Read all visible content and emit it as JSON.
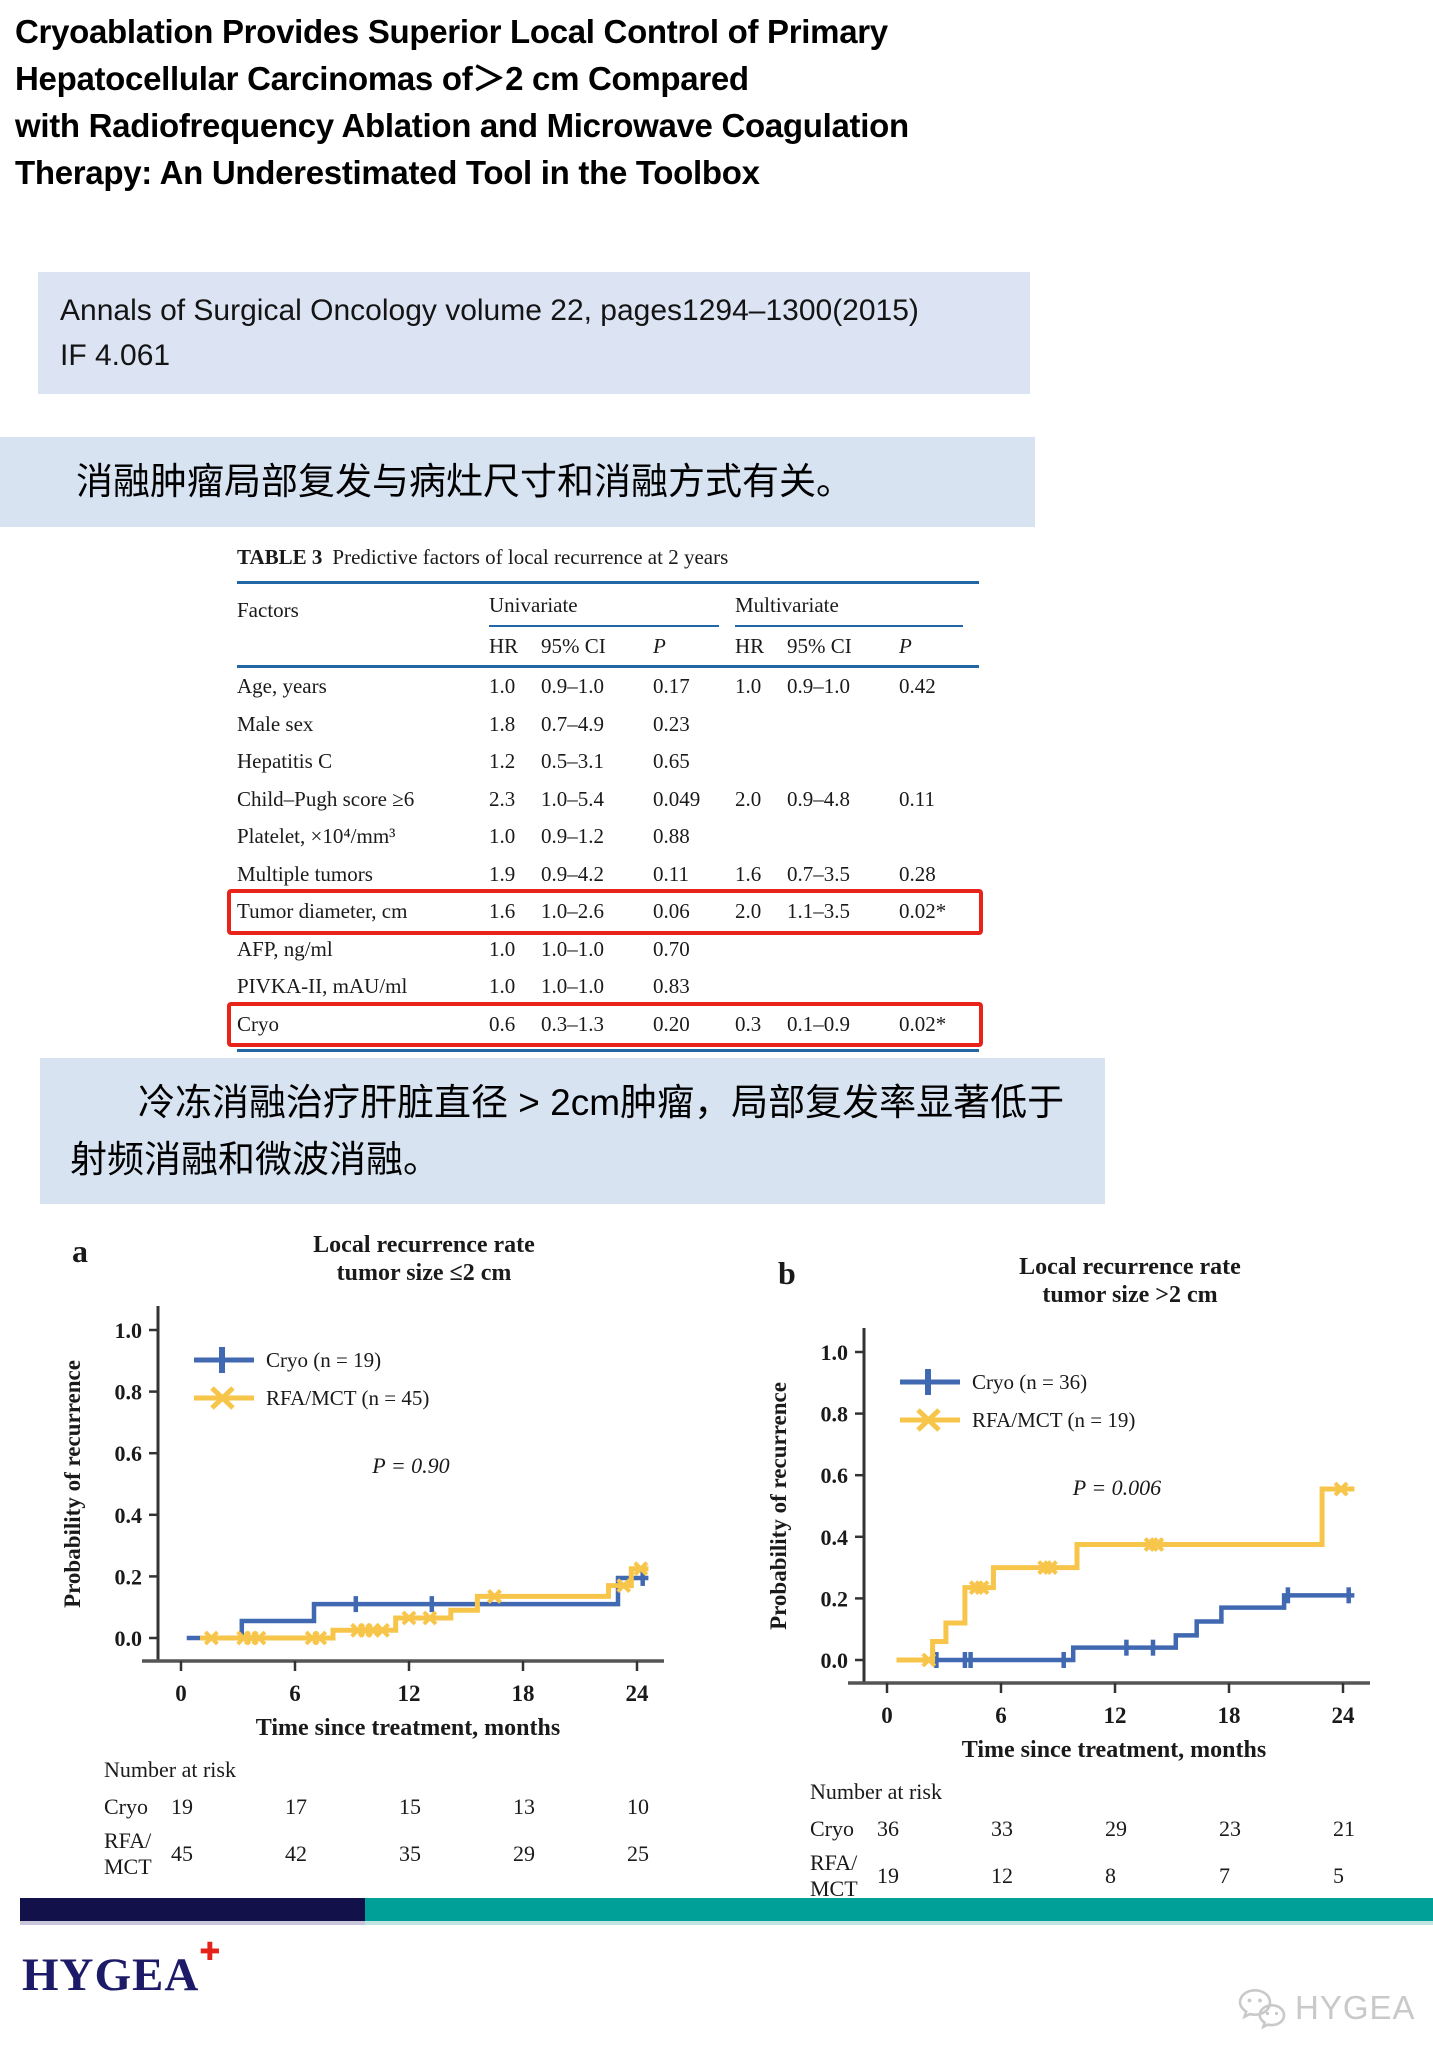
{
  "header": {
    "title_lines": [
      "Cryoablation Provides Superior Local Control of Primary",
      "Hepatocellular Carcinomas of＞2 cm Compared",
      "with Radiofrequency Ablation and Microwave Coagulation",
      "Therapy: An Underestimated Tool in the Toolbox"
    ]
  },
  "citation": {
    "line1": "Annals of Surgical Oncology volume 22, pages1294–1300(2015)",
    "line2": "IF 4.061"
  },
  "banners": {
    "zh1": "消融肿瘤局部复发与病灶尺寸和消融方式有关。",
    "zh2": "冷冻消融治疗肝脏直径 > 2cm肿瘤，局部复发率显著低于射频消融和微波消融。"
  },
  "table": {
    "label": "TABLE 3",
    "caption": "Predictive factors of local recurrence at 2 years",
    "factors_header": "Factors",
    "col_groups": [
      "Univariate",
      "Multivariate"
    ],
    "sub_headers": [
      "HR",
      "95% CI",
      "P"
    ],
    "rows": [
      {
        "factor": "Age, years",
        "uni": [
          "1.0",
          "0.9–1.0",
          "0.17"
        ],
        "multi": [
          "1.0",
          "0.9–1.0",
          "0.42"
        ],
        "boxed": false
      },
      {
        "factor": "Male sex",
        "uni": [
          "1.8",
          "0.7–4.9",
          "0.23"
        ],
        "multi": [
          "",
          "",
          ""
        ],
        "boxed": false
      },
      {
        "factor": "Hepatitis C",
        "uni": [
          "1.2",
          "0.5–3.1",
          "0.65"
        ],
        "multi": [
          "",
          "",
          ""
        ],
        "boxed": false
      },
      {
        "factor": "Child–Pugh score ≥6",
        "uni": [
          "2.3",
          "1.0–5.4",
          "0.049"
        ],
        "multi": [
          "2.0",
          "0.9–4.8",
          "0.11"
        ],
        "boxed": false
      },
      {
        "factor": "Platelet, ×10⁴/mm³",
        "uni": [
          "1.0",
          "0.9–1.2",
          "0.88"
        ],
        "multi": [
          "",
          "",
          ""
        ],
        "boxed": false
      },
      {
        "factor": "Multiple tumors",
        "uni": [
          "1.9",
          "0.9–4.2",
          "0.11"
        ],
        "multi": [
          "1.6",
          "0.7–3.5",
          "0.28"
        ],
        "boxed": false
      },
      {
        "factor": "Tumor diameter, cm",
        "uni": [
          "1.6",
          "1.0–2.6",
          "0.06"
        ],
        "multi": [
          "2.0",
          "1.1–3.5",
          "0.02*"
        ],
        "boxed": true
      },
      {
        "factor": "AFP, ng/ml",
        "uni": [
          "1.0",
          "1.0–1.0",
          "0.70"
        ],
        "multi": [
          "",
          "",
          ""
        ],
        "boxed": false
      },
      {
        "factor": "PIVKA-II, mAU/ml",
        "uni": [
          "1.0",
          "1.0–1.0",
          "0.83"
        ],
        "multi": [
          "",
          "",
          ""
        ],
        "boxed": false
      },
      {
        "factor": "Cryo",
        "uni": [
          "0.6",
          "0.3–1.3",
          "0.20"
        ],
        "multi": [
          "0.3",
          "0.1–0.9",
          "0.02*"
        ],
        "boxed": true
      }
    ]
  },
  "chart_data": [
    {
      "type": "line",
      "panel": "a",
      "title_lines": [
        "Local recurrence rate",
        "tumor size ≤2 cm"
      ],
      "xlabel": "Time since treatment, months",
      "ylabel": "Probability of recurrence",
      "xticks": [
        0,
        6,
        12,
        18,
        24
      ],
      "yticks": [
        "1.0",
        "0.8",
        "0.6",
        "0.4",
        "0.2",
        "0.0"
      ],
      "xlim": [
        0,
        25
      ],
      "ylim": [
        0,
        1
      ],
      "grid": false,
      "legend_position": "upper-left",
      "p_label": "P = 0.90",
      "series": [
        {
          "name": "Cryo (n = 19)",
          "color": "#4169b2",
          "marker": "plus",
          "steps": [
            [
              0.3,
              0
            ],
            [
              3.2,
              0
            ],
            [
              3.2,
              0.055
            ],
            [
              7,
              0.055
            ],
            [
              7,
              0.11
            ],
            [
              23,
              0.11
            ],
            [
              23,
              0.195
            ],
            [
              24.6,
              0.195
            ]
          ],
          "censors": [
            [
              9.2,
              0.11
            ],
            [
              13.2,
              0.11
            ],
            [
              24.3,
              0.195
            ]
          ]
        },
        {
          "name": "RFA/MCT (n = 45)",
          "color": "#f7c54a",
          "marker": "cross",
          "steps": [
            [
              1,
              0
            ],
            [
              8,
              0
            ],
            [
              8,
              0.025
            ],
            [
              11.3,
              0.025
            ],
            [
              11.3,
              0.065
            ],
            [
              14.2,
              0.065
            ],
            [
              14.2,
              0.09
            ],
            [
              15.6,
              0.09
            ],
            [
              15.6,
              0.135
            ],
            [
              22.5,
              0.135
            ],
            [
              22.5,
              0.17
            ],
            [
              23.7,
              0.17
            ],
            [
              23.7,
              0.225
            ],
            [
              24.6,
              0.225
            ]
          ],
          "censors": [
            [
              1.6,
              0
            ],
            [
              3.3,
              0
            ],
            [
              3.7,
              0
            ],
            [
              4.1,
              0
            ],
            [
              6.9,
              0
            ],
            [
              7.3,
              0
            ],
            [
              9.3,
              0.025
            ],
            [
              9.7,
              0.025
            ],
            [
              10.1,
              0.025
            ],
            [
              10.6,
              0.025
            ],
            [
              12,
              0.065
            ],
            [
              13.1,
              0.065
            ],
            [
              16.5,
              0.135
            ],
            [
              23.3,
              0.17
            ],
            [
              24.2,
              0.225
            ]
          ]
        }
      ],
      "risk": {
        "header": "Number at risk",
        "rows": [
          {
            "label_lines": [
              "Cryo"
            ],
            "values": [
              "19",
              "17",
              "15",
              "13",
              "10"
            ]
          },
          {
            "label_lines": [
              "RFA/",
              "MCT"
            ],
            "values": [
              "45",
              "42",
              "35",
              "29",
              "25"
            ]
          }
        ]
      }
    },
    {
      "type": "line",
      "panel": "b",
      "title_lines": [
        "Local recurrence rate",
        "tumor size >2 cm"
      ],
      "xlabel": "Time since treatment, months",
      "ylabel": "Probability of recurrence",
      "xticks": [
        0,
        6,
        12,
        18,
        24
      ],
      "yticks": [
        "1.0",
        "0.8",
        "0.6",
        "0.4",
        "0.2",
        "0.0"
      ],
      "xlim": [
        0,
        25
      ],
      "ylim": [
        0,
        1
      ],
      "grid": false,
      "legend_position": "upper-left",
      "p_label": "P = 0.006",
      "series": [
        {
          "name": "Cryo (n = 36)",
          "color": "#4169b2",
          "marker": "plus",
          "steps": [
            [
              0.5,
              0
            ],
            [
              9.8,
              0
            ],
            [
              9.8,
              0.04
            ],
            [
              15.2,
              0.04
            ],
            [
              15.2,
              0.08
            ],
            [
              16.3,
              0.08
            ],
            [
              16.3,
              0.125
            ],
            [
              17.6,
              0.125
            ],
            [
              17.6,
              0.17
            ],
            [
              20.9,
              0.17
            ],
            [
              20.9,
              0.21
            ],
            [
              24.6,
              0.21
            ]
          ],
          "censors": [
            [
              2.6,
              0
            ],
            [
              4.1,
              0
            ],
            [
              4.4,
              0
            ],
            [
              9.3,
              0
            ],
            [
              12.6,
              0.04
            ],
            [
              14,
              0.04
            ],
            [
              21.1,
              0.21
            ],
            [
              24.3,
              0.21
            ]
          ]
        },
        {
          "name": "RFA/MCT (n = 19)",
          "color": "#f7c54a",
          "marker": "cross",
          "steps": [
            [
              0.5,
              0
            ],
            [
              2.4,
              0
            ],
            [
              2.4,
              0.06
            ],
            [
              3.1,
              0.06
            ],
            [
              3.1,
              0.12
            ],
            [
              4.1,
              0.12
            ],
            [
              4.1,
              0.235
            ],
            [
              5.6,
              0.235
            ],
            [
              5.6,
              0.3
            ],
            [
              10,
              0.3
            ],
            [
              10,
              0.375
            ],
            [
              22.9,
              0.375
            ],
            [
              22.9,
              0.555
            ],
            [
              24.6,
              0.555
            ]
          ],
          "censors": [
            [
              2.2,
              0
            ],
            [
              4.7,
              0.235
            ],
            [
              5,
              0.235
            ],
            [
              8.3,
              0.3
            ],
            [
              8.6,
              0.3
            ],
            [
              13.9,
              0.375
            ],
            [
              14.2,
              0.375
            ],
            [
              23.9,
              0.555
            ]
          ]
        }
      ],
      "risk": {
        "header": "Number at risk",
        "rows": [
          {
            "label_lines": [
              "Cryo"
            ],
            "values": [
              "36",
              "33",
              "29",
              "23",
              "21"
            ]
          },
          {
            "label_lines": [
              "RFA/",
              "MCT"
            ],
            "values": [
              "19",
              "12",
              "8",
              "7",
              "5"
            ]
          }
        ]
      }
    }
  ],
  "footer": {
    "logo_text": "HYGEA",
    "logo_cross": "✚",
    "watermark_text": "HYGEA"
  },
  "colors": {
    "banner_blue": "#dce4f3",
    "banner_blue2": "#d8e3f2",
    "table_rule_blue": "#2166a5",
    "highlight_red": "#e8231a",
    "curve_blue": "#4169b2",
    "curve_yellow": "#f7c54a",
    "footer_navy": "#131149",
    "footer_teal": "#00a099",
    "logo_navy": "#1d1b67",
    "logo_cross_red": "#e5231b",
    "watermark_gray": "#c9c9c9"
  }
}
